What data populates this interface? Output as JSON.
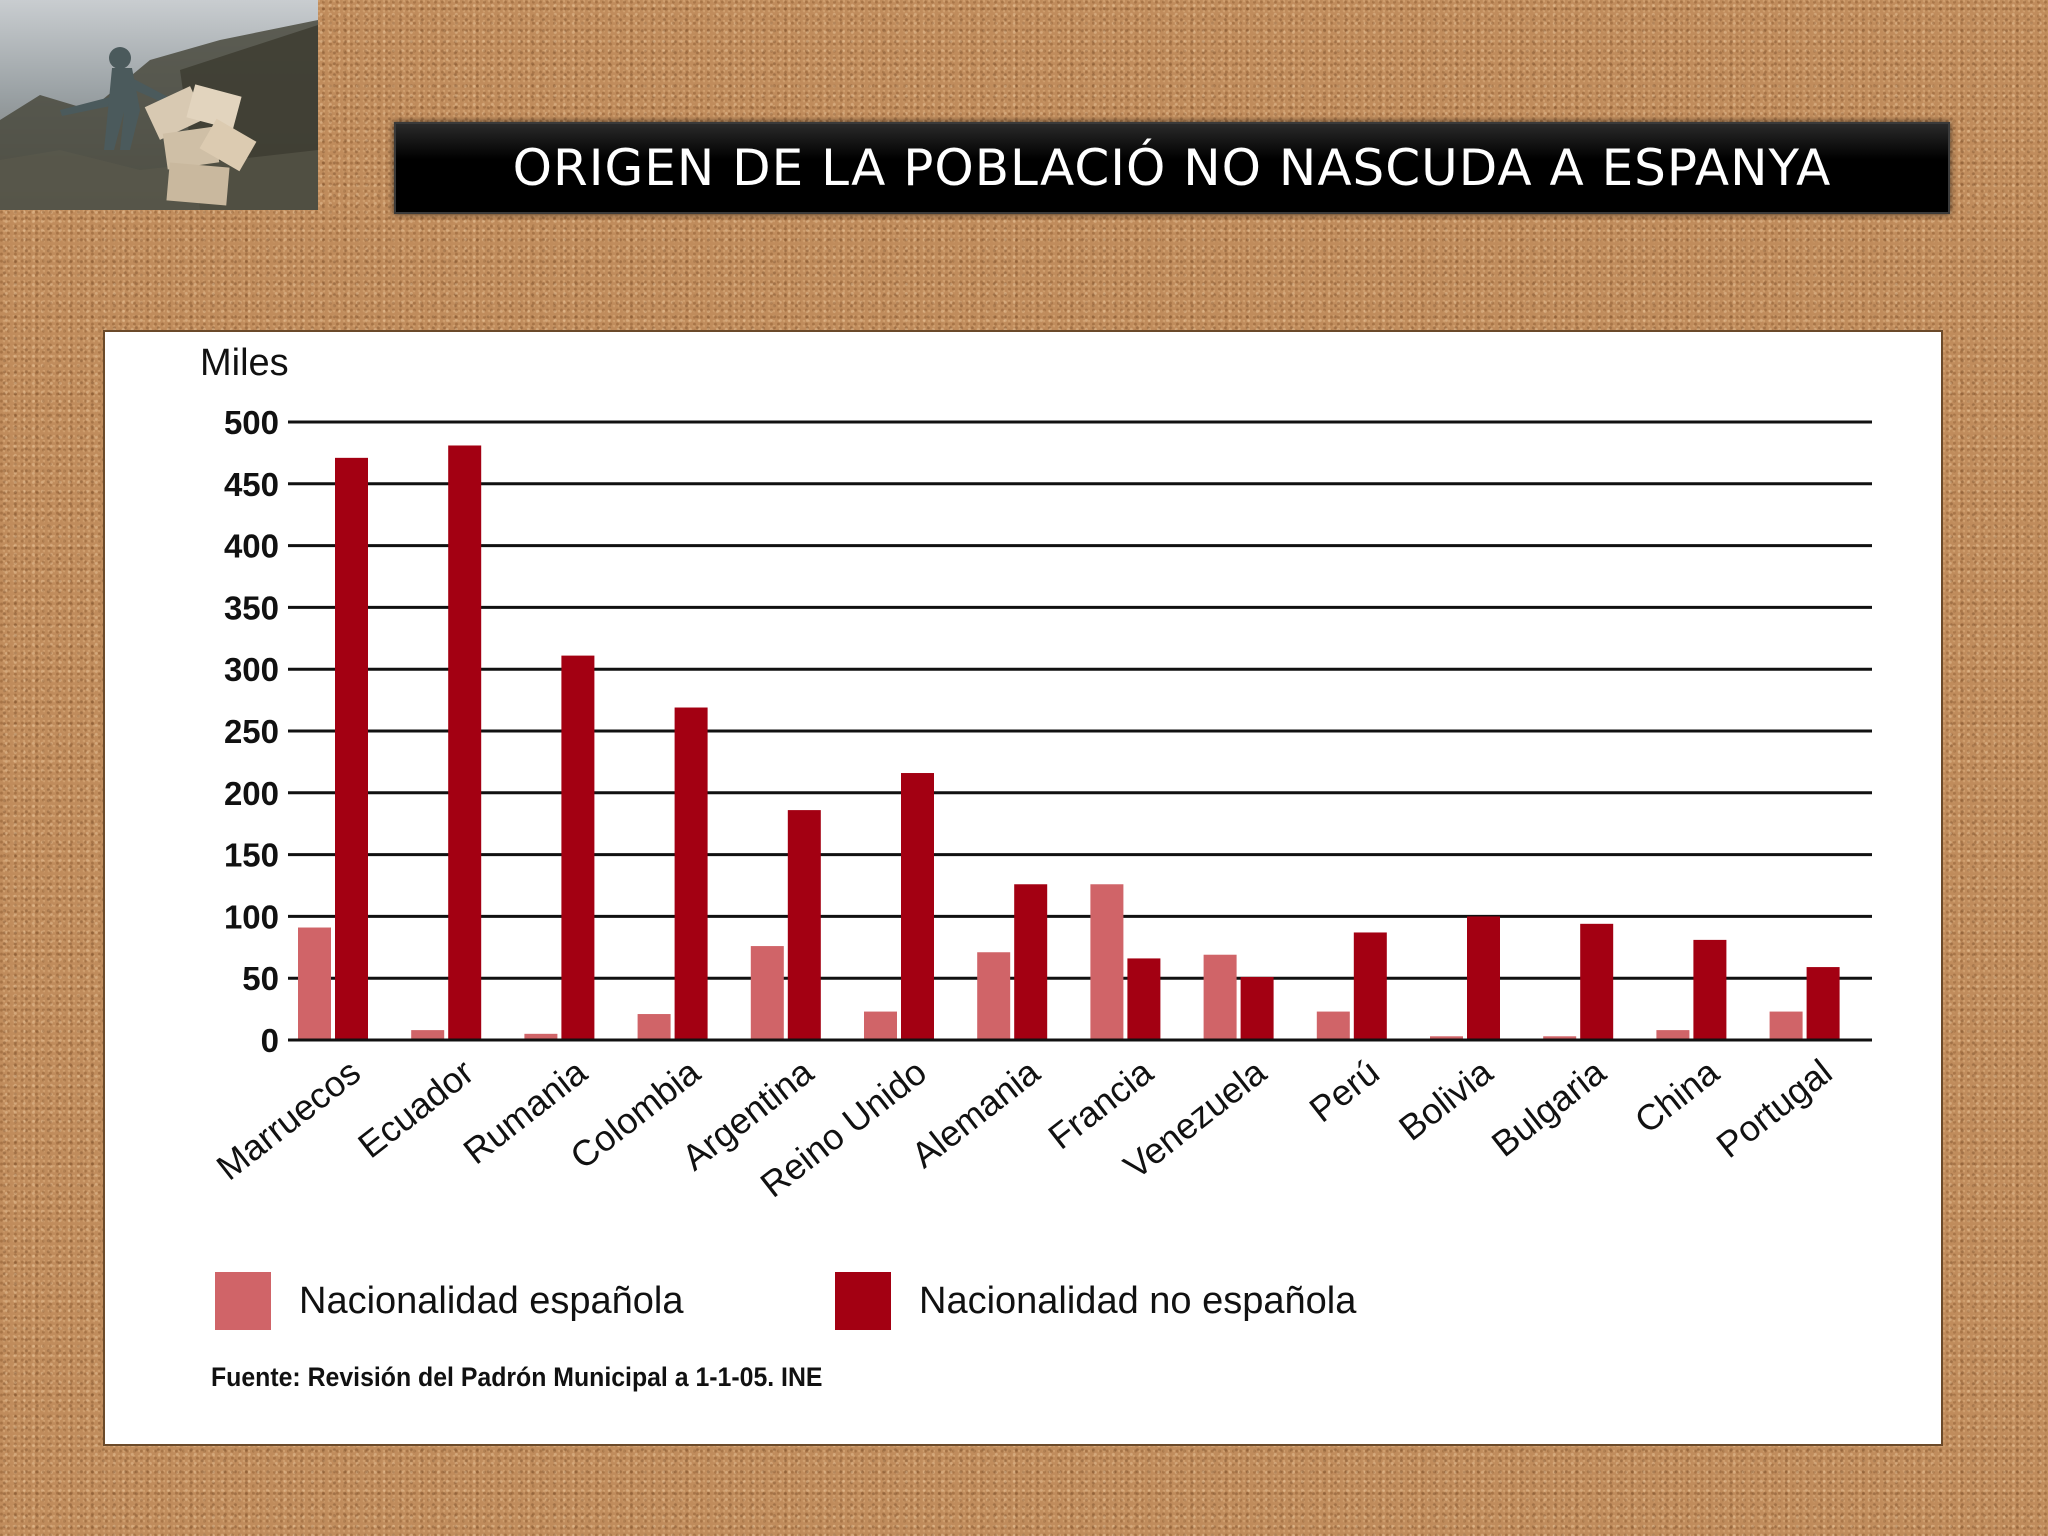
{
  "slide": {
    "title": "ORIGEN DE LA POBLACIÓ NO NASCUDA A ESPANYA",
    "source": "Fuente: Revisión del Padrón Municipal a 1-1-05. INE"
  },
  "chart_data": {
    "type": "bar",
    "title": "",
    "xlabel": "",
    "ylabel": "Miles",
    "ylim": [
      0,
      500
    ],
    "yticks": [
      0,
      50,
      100,
      150,
      200,
      250,
      300,
      350,
      400,
      450,
      500
    ],
    "grid": true,
    "legend_position": "bottom",
    "categories": [
      "Marruecos",
      "Ecuador",
      "Rumania",
      "Colombia",
      "Argentina",
      "Reino Unido",
      "Alemania",
      "Francia",
      "Venezuela",
      "Perú",
      "Bolivia",
      "Bulgaria",
      "China",
      "Portugal"
    ],
    "series": [
      {
        "name": "Nacionalidad española",
        "color": "#d06468",
        "values": [
          91,
          8,
          5,
          21,
          76,
          23,
          71,
          126,
          69,
          23,
          3,
          3,
          8,
          23
        ]
      },
      {
        "name": "Nacionalidad no española",
        "color": "#a30012",
        "values": [
          471,
          481,
          311,
          269,
          186,
          216,
          126,
          66,
          51,
          87,
          100,
          94,
          81,
          59
        ]
      }
    ]
  }
}
